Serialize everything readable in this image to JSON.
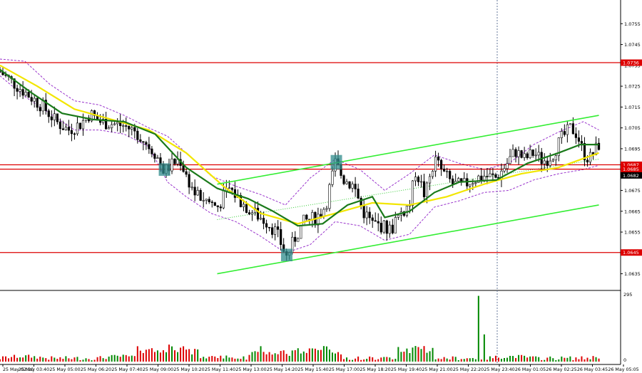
{
  "chart_data": {
    "type": "candlestick",
    "symbol": "EURUSD",
    "price_axis": {
      "ylim": [
        1.0627,
        1.0765
      ],
      "ticks": [
        "1.0755",
        "1.0745",
        "1.0735",
        "1.0725",
        "1.0715",
        "1.0705",
        "1.0695",
        "1.0685",
        "1.0675",
        "1.0665",
        "1.0655",
        "1.0645",
        "1.0635"
      ]
    },
    "volume_axis": {
      "max_label": "295",
      "min_label": "0",
      "ylim": [
        0,
        295
      ]
    },
    "time_labels": [
      "25 May 02:20",
      "25 May 03:40",
      "25 May 05:00",
      "25 May 06:20",
      "25 May 07:40",
      "25 May 09:00",
      "25 May 10:20",
      "25 May 11:40",
      "25 May 13:00",
      "25 May 14:20",
      "25 May 15:40",
      "25 May 17:00",
      "25 May 18:20",
      "25 May 19:40",
      "25 May 21:00",
      "25 May 22:20",
      "25 May 23:40",
      "26 May 01:05",
      "26 May 02:25",
      "26 May 03:45",
      "26 May 05:05"
    ],
    "levels": [
      {
        "label": "1.0736",
        "value": 1.07363,
        "color": "#dd0000"
      },
      {
        "label": "1.0687",
        "value": 1.06873,
        "color": "#dd0000"
      },
      {
        "label": "1.0685",
        "value": 1.06852,
        "color": "#dd0000"
      },
      {
        "label": "1.0645",
        "value": 1.06452,
        "color": "#dd0000"
      }
    ],
    "current_price": {
      "label": "1.0682",
      "value": 1.06822
    },
    "channel_lines": [
      {
        "from": [
          0.35,
          1.0678
        ],
        "to": [
          0.965,
          1.0711
        ]
      },
      {
        "from": [
          0.35,
          1.0635
        ],
        "to": [
          0.965,
          1.0668
        ]
      }
    ],
    "highlight_boxes": [
      {
        "bar": 0.265,
        "low": 1.0682,
        "high": 1.0688
      },
      {
        "bar": 0.542,
        "low": 1.0685,
        "high": 1.0692
      },
      {
        "bar": 0.462,
        "low": 1.0641,
        "high": 1.0647
      }
    ],
    "close_path": [
      [
        0.0,
        1.0732
      ],
      [
        0.02,
        1.0727
      ],
      [
        0.045,
        1.0721
      ],
      [
        0.07,
        1.0715
      ],
      [
        0.09,
        1.0708
      ],
      [
        0.11,
        1.0704
      ],
      [
        0.13,
        1.0707
      ],
      [
        0.145,
        1.0712
      ],
      [
        0.16,
        1.0708
      ],
      [
        0.18,
        1.0707
      ],
      [
        0.2,
        1.0706
      ],
      [
        0.22,
        1.0703
      ],
      [
        0.235,
        1.0698
      ],
      [
        0.25,
        1.0693
      ],
      [
        0.265,
        1.0684
      ],
      [
        0.275,
        1.0687
      ],
      [
        0.29,
        1.069
      ],
      [
        0.3,
        1.0682
      ],
      [
        0.315,
        1.0673
      ],
      [
        0.33,
        1.0671
      ],
      [
        0.35,
        1.0667
      ],
      [
        0.37,
        1.0676
      ],
      [
        0.39,
        1.0669
      ],
      [
        0.41,
        1.0664
      ],
      [
        0.43,
        1.066
      ],
      [
        0.445,
        1.0655
      ],
      [
        0.455,
        1.0648
      ],
      [
        0.462,
        1.0643
      ],
      [
        0.475,
        1.0652
      ],
      [
        0.49,
        1.066
      ],
      [
        0.51,
        1.0662
      ],
      [
        0.525,
        1.0668
      ],
      [
        0.54,
        1.0688
      ],
      [
        0.555,
        1.068
      ],
      [
        0.57,
        1.0677
      ],
      [
        0.585,
        1.0665
      ],
      [
        0.6,
        1.0659
      ],
      [
        0.615,
        1.0658
      ],
      [
        0.63,
        1.0656
      ],
      [
        0.645,
        1.0664
      ],
      [
        0.66,
        1.0668
      ],
      [
        0.67,
        1.0685
      ],
      [
        0.685,
        1.0672
      ],
      [
        0.7,
        1.069
      ],
      [
        0.715,
        1.0683
      ],
      [
        0.73,
        1.0678
      ],
      [
        0.745,
        1.0677
      ],
      [
        0.76,
        1.068
      ],
      [
        0.78,
        1.0682
      ],
      [
        0.8,
        1.0681
      ],
      [
        0.815,
        1.0687
      ],
      [
        0.83,
        1.0694
      ],
      [
        0.845,
        1.069
      ],
      [
        0.86,
        1.0693
      ],
      [
        0.875,
        1.0689
      ],
      [
        0.89,
        1.0692
      ],
      [
        0.905,
        1.07
      ],
      [
        0.92,
        1.0705
      ],
      [
        0.93,
        1.0702
      ],
      [
        0.94,
        1.0693
      ],
      [
        0.95,
        1.069
      ],
      [
        0.965,
        1.0697
      ]
    ],
    "ma_slow_path": [
      [
        0.0,
        1.0735
      ],
      [
        0.06,
        1.0725
      ],
      [
        0.12,
        1.0714
      ],
      [
        0.18,
        1.0709
      ],
      [
        0.24,
        1.0704
      ],
      [
        0.3,
        1.0693
      ],
      [
        0.36,
        1.0677
      ],
      [
        0.42,
        1.0664
      ],
      [
        0.48,
        1.0659
      ],
      [
        0.54,
        1.0664
      ],
      [
        0.6,
        1.0669
      ],
      [
        0.66,
        1.0668
      ],
      [
        0.72,
        1.0672
      ],
      [
        0.78,
        1.0678
      ],
      [
        0.84,
        1.0683
      ],
      [
        0.9,
        1.0686
      ],
      [
        0.965,
        1.0693
      ]
    ],
    "ma_fast_path": [
      [
        0.0,
        1.0733
      ],
      [
        0.05,
        1.0722
      ],
      [
        0.1,
        1.0712
      ],
      [
        0.15,
        1.0709
      ],
      [
        0.2,
        1.0708
      ],
      [
        0.25,
        1.0702
      ],
      [
        0.3,
        1.0686
      ],
      [
        0.35,
        1.0676
      ],
      [
        0.4,
        1.0671
      ],
      [
        0.44,
        1.0665
      ],
      [
        0.48,
        1.0658
      ],
      [
        0.52,
        1.0659
      ],
      [
        0.56,
        1.0668
      ],
      [
        0.6,
        1.0672
      ],
      [
        0.62,
        1.0662
      ],
      [
        0.66,
        1.0665
      ],
      [
        0.7,
        1.0674
      ],
      [
        0.74,
        1.0679
      ],
      [
        0.8,
        1.068
      ],
      [
        0.85,
        1.0688
      ],
      [
        0.9,
        1.0693
      ],
      [
        0.935,
        1.0697
      ],
      [
        0.965,
        1.0697
      ]
    ],
    "envelope_upper_path": [
      [
        0.0,
        1.0738
      ],
      [
        0.04,
        1.0737
      ],
      [
        0.08,
        1.0726
      ],
      [
        0.12,
        1.0718
      ],
      [
        0.16,
        1.0716
      ],
      [
        0.2,
        1.0711
      ],
      [
        0.24,
        1.0705
      ],
      [
        0.27,
        1.0701
      ],
      [
        0.3,
        1.0693
      ],
      [
        0.34,
        1.0682
      ],
      [
        0.38,
        1.0677
      ],
      [
        0.42,
        1.0673
      ],
      [
        0.46,
        1.0668
      ],
      [
        0.5,
        1.0681
      ],
      [
        0.54,
        1.069
      ],
      [
        0.58,
        1.0685
      ],
      [
        0.62,
        1.0675
      ],
      [
        0.66,
        1.0683
      ],
      [
        0.7,
        1.0692
      ],
      [
        0.74,
        1.0688
      ],
      [
        0.78,
        1.0685
      ],
      [
        0.82,
        1.0688
      ],
      [
        0.86,
        1.0697
      ],
      [
        0.9,
        1.0703
      ],
      [
        0.94,
        1.0708
      ],
      [
        0.965,
        1.0704
      ]
    ],
    "envelope_lower_path": [
      [
        0.0,
        1.073
      ],
      [
        0.04,
        1.072
      ],
      [
        0.08,
        1.0712
      ],
      [
        0.12,
        1.0704
      ],
      [
        0.16,
        1.0704
      ],
      [
        0.2,
        1.0702
      ],
      [
        0.24,
        1.0696
      ],
      [
        0.27,
        1.0679
      ],
      [
        0.3,
        1.0672
      ],
      [
        0.34,
        1.0664
      ],
      [
        0.38,
        1.066
      ],
      [
        0.42,
        1.0653
      ],
      [
        0.46,
        1.0645
      ],
      [
        0.5,
        1.0649
      ],
      [
        0.54,
        1.066
      ],
      [
        0.58,
        1.0658
      ],
      [
        0.62,
        1.0651
      ],
      [
        0.66,
        1.0654
      ],
      [
        0.7,
        1.0667
      ],
      [
        0.74,
        1.067
      ],
      [
        0.78,
        1.0674
      ],
      [
        0.82,
        1.0675
      ],
      [
        0.86,
        1.068
      ],
      [
        0.9,
        1.0683
      ],
      [
        0.94,
        1.0685
      ],
      [
        0.965,
        1.0687
      ]
    ],
    "dotted_trend_path": [
      [
        0.35,
        1.0661
      ],
      [
        0.965,
        1.069
      ]
    ],
    "volume_spikes": [
      {
        "bar": 0.242,
        "value": 55
      },
      {
        "bar": 0.274,
        "value": 75
      },
      {
        "bar": 0.42,
        "value": 68
      },
      {
        "bar": 0.535,
        "value": 40
      },
      {
        "bar": 0.665,
        "value": 62
      },
      {
        "bar": 0.772,
        "value": 290
      },
      {
        "bar": 0.78,
        "value": 120
      }
    ],
    "colors": {
      "up": "#008800",
      "down": "#dd0000",
      "candle": "#000000",
      "ma_slow": "#f2e600",
      "ma_fast": "#1a7a1a",
      "channel": "#33ee33",
      "envelope": "#9933cc",
      "level": "#dd0000",
      "highlight": "#2f8b8b"
    }
  }
}
